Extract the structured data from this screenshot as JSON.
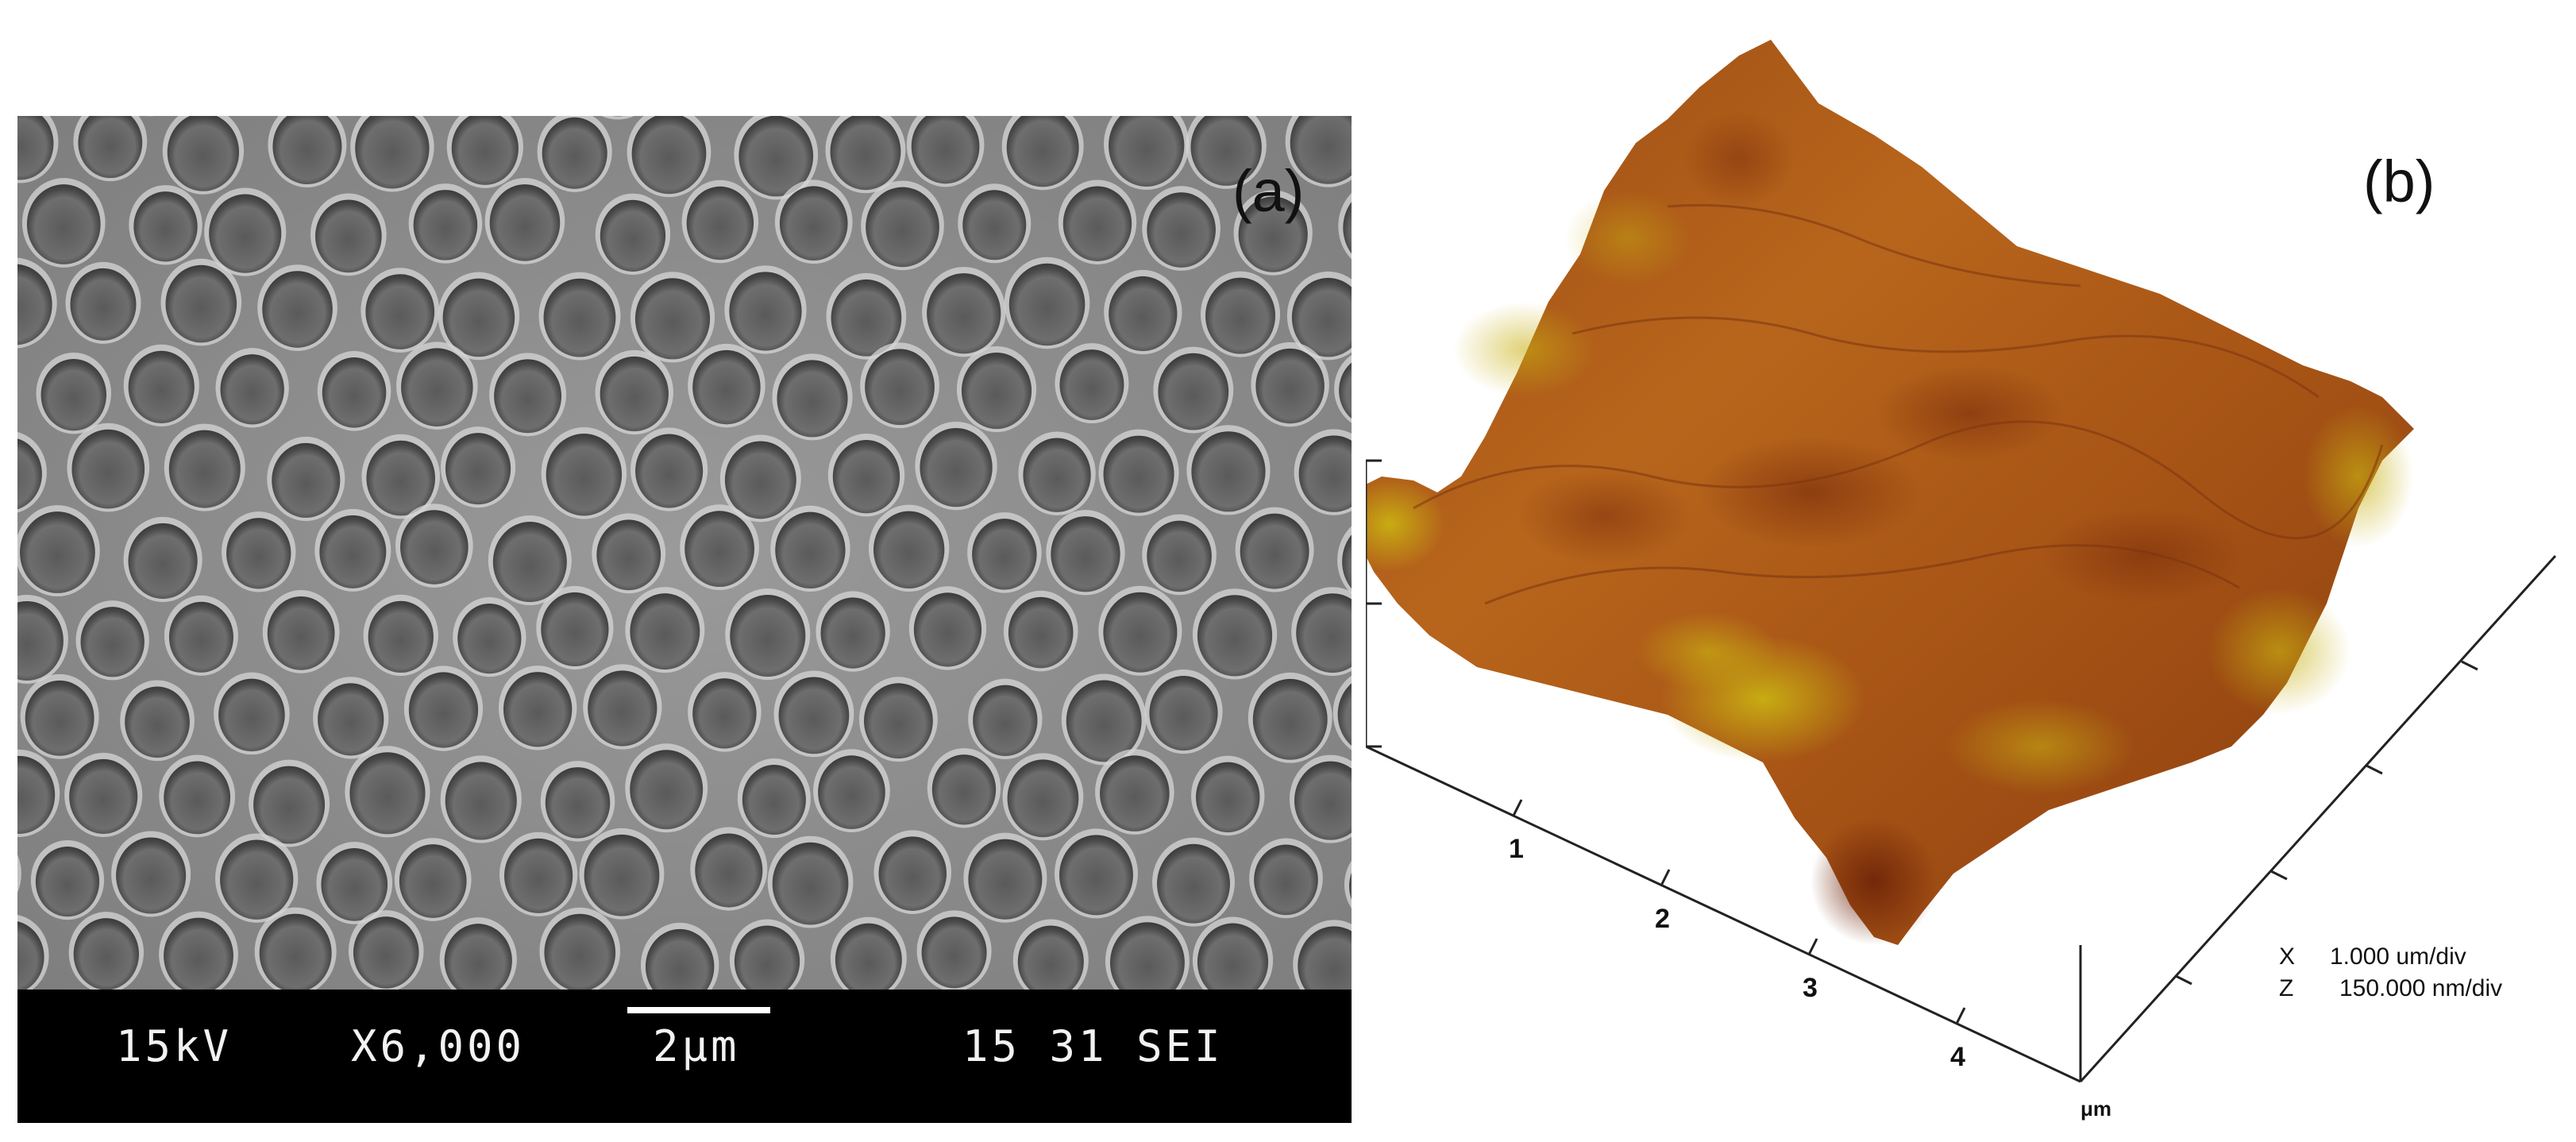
{
  "figure": {
    "panel_a": {
      "label": "(a)",
      "sem_info": {
        "voltage": "15kV",
        "magnification": "X6,000",
        "scale": "2μm",
        "id": "15 31 SEI"
      }
    },
    "panel_b": {
      "label": "(b)",
      "axis_ticks": [
        "1",
        "2",
        "3",
        "4"
      ],
      "axis_unit": "μm",
      "legend": {
        "x_key": "X",
        "x_value": "1.000 um/div",
        "z_key": "Z",
        "z_value": "150.000 nm/div"
      }
    },
    "colors": {
      "sem_gray": "#8a8a8a",
      "afm_dark": "#7a2e0a",
      "afm_mid": "#b5601a",
      "afm_light": "#c9a812"
    }
  }
}
